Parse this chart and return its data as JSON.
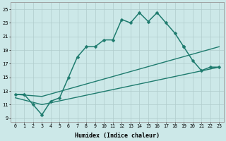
{
  "xlabel": "Humidex (Indice chaleur)",
  "background_color": "#cce8e8",
  "grid_color": "#b0cccc",
  "line_color": "#1e7b6e",
  "xlim": [
    -0.5,
    23.5
  ],
  "ylim": [
    8.5,
    26
  ],
  "xticks": [
    0,
    1,
    2,
    3,
    4,
    5,
    6,
    7,
    8,
    9,
    10,
    11,
    12,
    13,
    14,
    15,
    16,
    17,
    18,
    19,
    20,
    21,
    22,
    23
  ],
  "yticks": [
    9,
    11,
    13,
    15,
    17,
    19,
    21,
    23,
    25
  ],
  "series": [
    {
      "x": [
        0,
        1,
        2,
        3,
        4,
        5,
        6,
        7,
        8,
        9,
        10,
        11,
        12,
        13,
        14,
        15,
        16,
        17,
        18,
        19
      ],
      "y": [
        12.5,
        12.5,
        11.0,
        9.5,
        11.5,
        12.0,
        15.0,
        18.0,
        19.5,
        19.5,
        20.5,
        20.5,
        23.5,
        23.0,
        24.5,
        23.2,
        24.5,
        23.0,
        21.5,
        19.5
      ],
      "marker": "D",
      "markersize": 2.5,
      "linewidth": 1.1,
      "has_markers": true
    },
    {
      "x": [
        19,
        20,
        21,
        22,
        23
      ],
      "y": [
        19.5,
        17.5,
        16.0,
        16.5,
        16.5
      ],
      "marker": "D",
      "markersize": 2.5,
      "linewidth": 1.1,
      "has_markers": true
    },
    {
      "x": [
        0,
        3,
        23
      ],
      "y": [
        12.5,
        12.2,
        19.5
      ],
      "marker": null,
      "markersize": 0,
      "linewidth": 1.0,
      "has_markers": false
    },
    {
      "x": [
        0,
        3,
        23
      ],
      "y": [
        12.0,
        11.0,
        16.5
      ],
      "marker": null,
      "markersize": 0,
      "linewidth": 1.0,
      "has_markers": false
    }
  ]
}
